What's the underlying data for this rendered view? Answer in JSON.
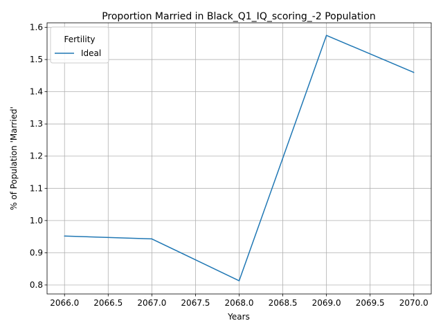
{
  "chart_data": {
    "type": "line",
    "title": "Proportion Married in Black_Q1_IQ_scoring_-2 Population",
    "xlabel": "Years",
    "ylabel": "% of Population 'Married'",
    "x": [
      2066,
      2067,
      2068,
      2069,
      2070
    ],
    "series": [
      {
        "name": "Ideal",
        "color": "#1f77b4",
        "values": [
          0.952,
          0.943,
          0.813,
          1.575,
          1.46
        ]
      }
    ],
    "xlim": [
      2065.8,
      2070.2
    ],
    "ylim": [
      0.772,
      1.614
    ],
    "x_ticks": [
      "2066.0",
      "2066.5",
      "2067.0",
      "2067.5",
      "2068.0",
      "2068.5",
      "2069.0",
      "2069.5",
      "2070.0"
    ],
    "y_ticks": [
      "0.8",
      "0.9",
      "1.0",
      "1.1",
      "1.2",
      "1.3",
      "1.4",
      "1.5",
      "1.6"
    ],
    "grid": true,
    "legend": {
      "title": "Fertility",
      "placement": "top-left"
    }
  }
}
